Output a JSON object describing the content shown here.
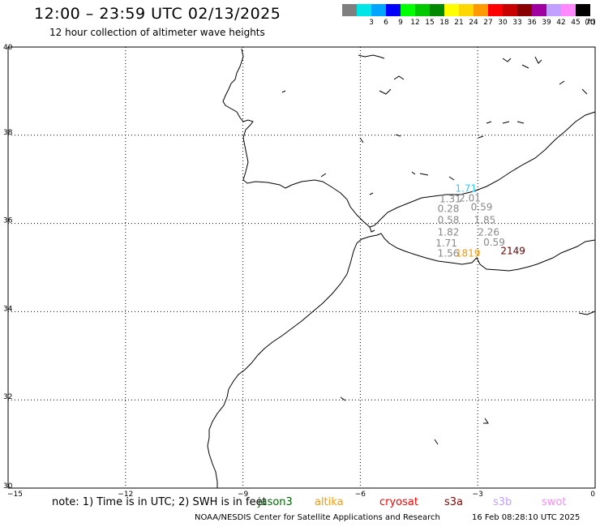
{
  "header": {
    "title": "12:00 – 23:59 UTC 02/13/2025",
    "subtitle": "12 hour collection of altimeter wave heights"
  },
  "legend": {
    "unit": "(ft)",
    "bins": [
      {
        "label": "",
        "color": "#7f7f7f"
      },
      {
        "label": "3",
        "color": "#00e5e5"
      },
      {
        "label": "6",
        "color": "#00a5ff"
      },
      {
        "label": "9",
        "color": "#0000ff"
      },
      {
        "label": "12",
        "color": "#00ff00"
      },
      {
        "label": "15",
        "color": "#00c800"
      },
      {
        "label": "18",
        "color": "#008800"
      },
      {
        "label": "21",
        "color": "#ffff00"
      },
      {
        "label": "24",
        "color": "#ffd700"
      },
      {
        "label": "27",
        "color": "#ff9900"
      },
      {
        "label": "30",
        "color": "#ff0000"
      },
      {
        "label": "33",
        "color": "#c80000"
      },
      {
        "label": "36",
        "color": "#880000"
      },
      {
        "label": "39",
        "color": "#a000a0"
      },
      {
        "label": "42",
        "color": "#c0a0ff"
      },
      {
        "label": "45",
        "color": "#ff88ff"
      },
      {
        "label": "70",
        "color": "#000000"
      }
    ]
  },
  "axes": {
    "lat_ticks": [
      "40",
      "38",
      "36",
      "34",
      "32",
      "30"
    ],
    "lon_ticks": [
      "−15",
      "−12",
      "−9",
      "−6",
      "−3",
      "0"
    ],
    "lat_range": [
      30,
      40
    ],
    "lon_range": [
      -15,
      0
    ]
  },
  "observations": [
    {
      "value": "1.71",
      "lon": -3.3,
      "lat": 36.72,
      "color": "#33ccff"
    },
    {
      "value": "1.31",
      "lon": -3.7,
      "lat": 36.48,
      "color": "#888888"
    },
    {
      "value": "2.01",
      "lon": -3.2,
      "lat": 36.5,
      "color": "#888888"
    },
    {
      "value": "0.28",
      "lon": -3.75,
      "lat": 36.26,
      "color": "#888888"
    },
    {
      "value": "0.59",
      "lon": -2.9,
      "lat": 36.3,
      "color": "#888888"
    },
    {
      "value": "0.58",
      "lon": -3.75,
      "lat": 36.0,
      "color": "#888888"
    },
    {
      "value": "1.85",
      "lon": -2.82,
      "lat": 36.0,
      "color": "#888888"
    },
    {
      "value": "1.82",
      "lon": -3.75,
      "lat": 35.73,
      "color": "#888888"
    },
    {
      "value": "2.26",
      "lon": -2.72,
      "lat": 35.73,
      "color": "#888888"
    },
    {
      "value": "1.71",
      "lon": -3.8,
      "lat": 35.48,
      "color": "#888888"
    },
    {
      "value": "0.59",
      "lon": -2.58,
      "lat": 35.5,
      "color": "#888888"
    },
    {
      "value": "1.56",
      "lon": -3.75,
      "lat": 35.25,
      "color": "#888888"
    },
    {
      "value": "1819",
      "lon": -3.25,
      "lat": 35.25,
      "color": "#ff9900"
    },
    {
      "value": "2149",
      "lon": -2.1,
      "lat": 35.3,
      "color": "#660000"
    }
  ],
  "footer": {
    "note": "note: 1) Time is in UTC; 2) SWH is in feet",
    "missions": [
      {
        "name": "jason3",
        "color": "#006600"
      },
      {
        "name": "altika",
        "color": "#ff9900"
      },
      {
        "name": "cryosat",
        "color": "#ff0000"
      },
      {
        "name": "s3a",
        "color": "#880000"
      },
      {
        "name": "s3b",
        "color": "#c0a0ff"
      },
      {
        "name": "swot",
        "color": "#ff88ff"
      }
    ],
    "credit": "NOAA/NESDIS Center for Satellite Applications and Research",
    "timestamp": "16 Feb 08:28:10 UTC 2025"
  }
}
